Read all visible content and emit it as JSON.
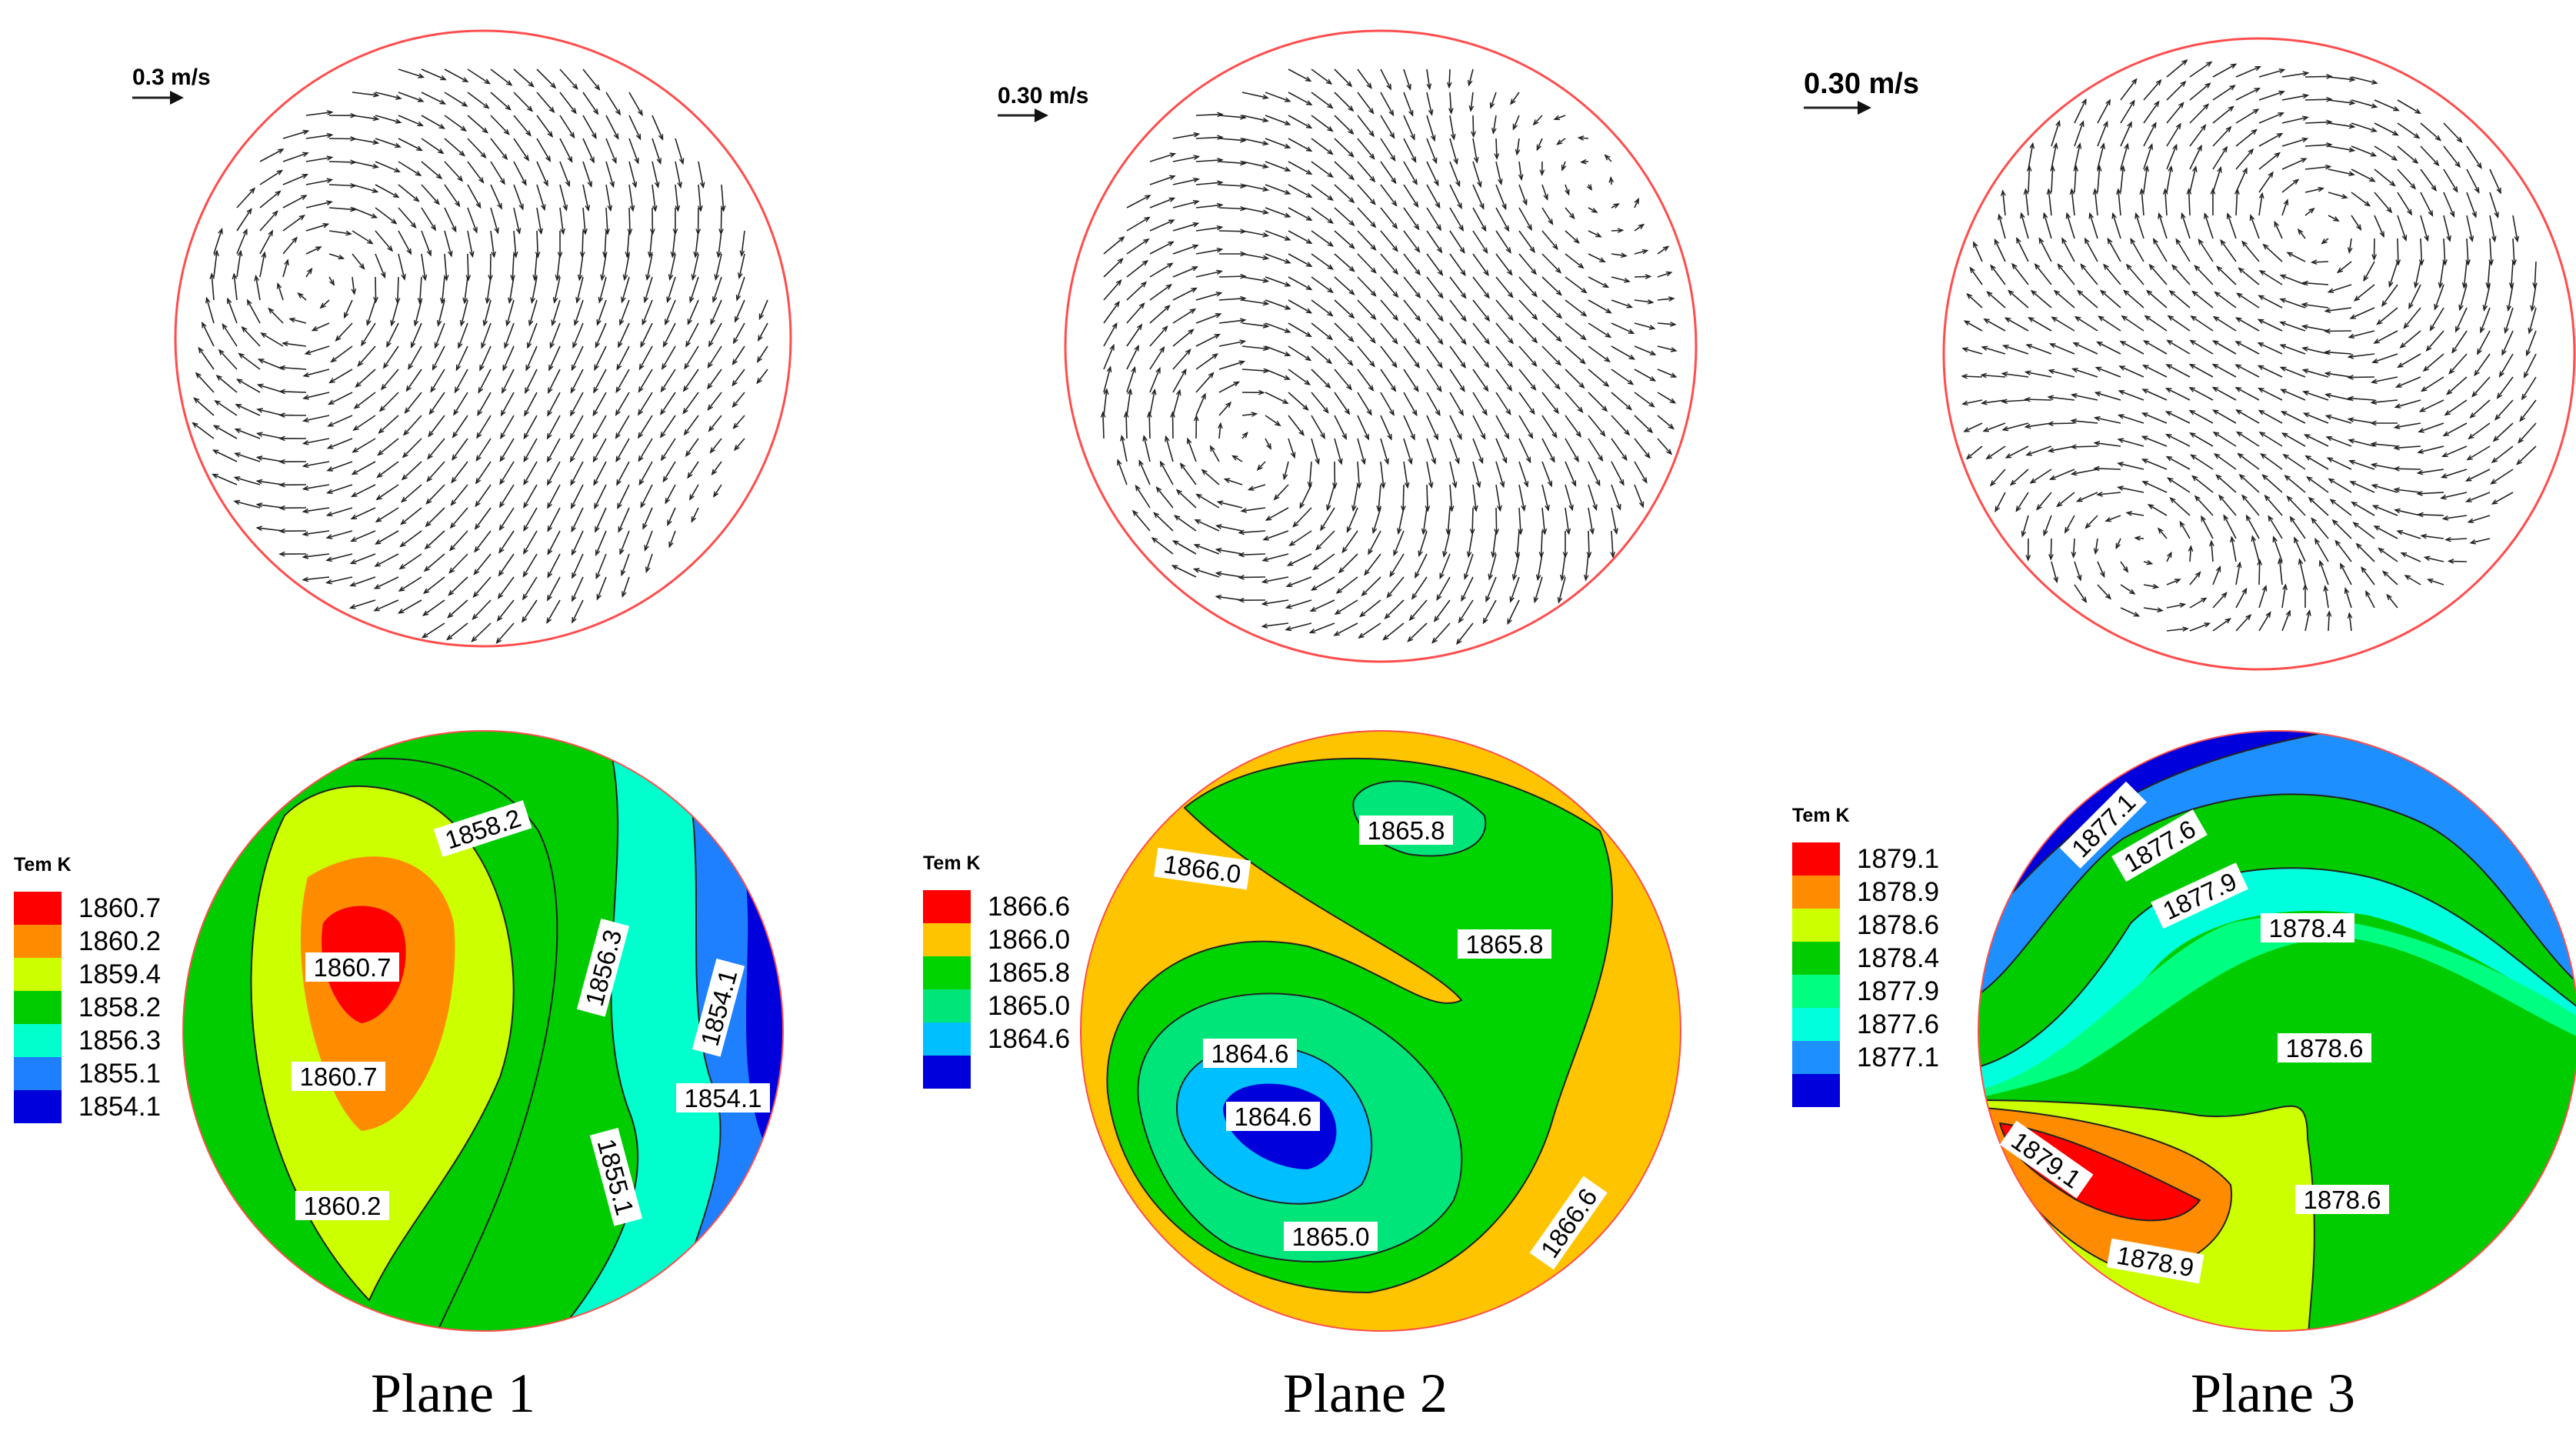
{
  "figure": {
    "planes": [
      {
        "caption": "Plane 1",
        "velocity_scale": "0.3 m/s",
        "legend_title": "Tem K",
        "legend": [
          {
            "label": "1860.7",
            "color": "#ff0000"
          },
          {
            "label": "1860.2",
            "color": "#ff8c00"
          },
          {
            "label": "1859.4",
            "color": "#ccff00"
          },
          {
            "label": "1858.2",
            "color": "#00cc00"
          },
          {
            "label": "1856.3",
            "color": "#00ffcc"
          },
          {
            "label": "1855.1",
            "color": "#1e7fff"
          },
          {
            "label": "1854.1",
            "color": "#0000dd"
          }
        ],
        "contour_labels": [
          "1858.2",
          "1860.7",
          "1860.7",
          "1860.2",
          "1856.3",
          "1854.1",
          "1854.1",
          "1855.1"
        ]
      },
      {
        "caption": "Plane 2",
        "velocity_scale": "0.30 m/s",
        "legend_title": "Tem K",
        "legend": [
          {
            "label": "1866.6",
            "color": "#ff0000"
          },
          {
            "label": "1866.0",
            "color": "#ffc400"
          },
          {
            "label": "1865.8",
            "color": "#00d400"
          },
          {
            "label": "1865.0",
            "color": "#00e57a"
          },
          {
            "label": "1864.6",
            "color": "#00bfff"
          },
          {
            "label": "",
            "color": "#0000dd"
          }
        ],
        "contour_labels": [
          "1865.8",
          "1866.0",
          "1865.8",
          "1864.6",
          "1864.6",
          "1865.0",
          "1866.6"
        ]
      },
      {
        "caption": "Plane 3",
        "velocity_scale": "0.30 m/s",
        "legend_title": "Tem K",
        "legend": [
          {
            "label": "1879.1",
            "color": "#ff0000"
          },
          {
            "label": "1878.9",
            "color": "#ff8c00"
          },
          {
            "label": "1878.6",
            "color": "#ccff00"
          },
          {
            "label": "1878.4",
            "color": "#00cc00"
          },
          {
            "label": "1877.9",
            "color": "#00ff80"
          },
          {
            "label": "1877.6",
            "color": "#00ffdd"
          },
          {
            "label": "1877.1",
            "color": "#1e8fff"
          },
          {
            "label": "",
            "color": "#0000dd"
          }
        ],
        "contour_labels": [
          "1877.1",
          "1877.6",
          "1877.9",
          "1878.4",
          "1878.6",
          "1879.1",
          "1878.6",
          "1878.9"
        ]
      }
    ]
  }
}
